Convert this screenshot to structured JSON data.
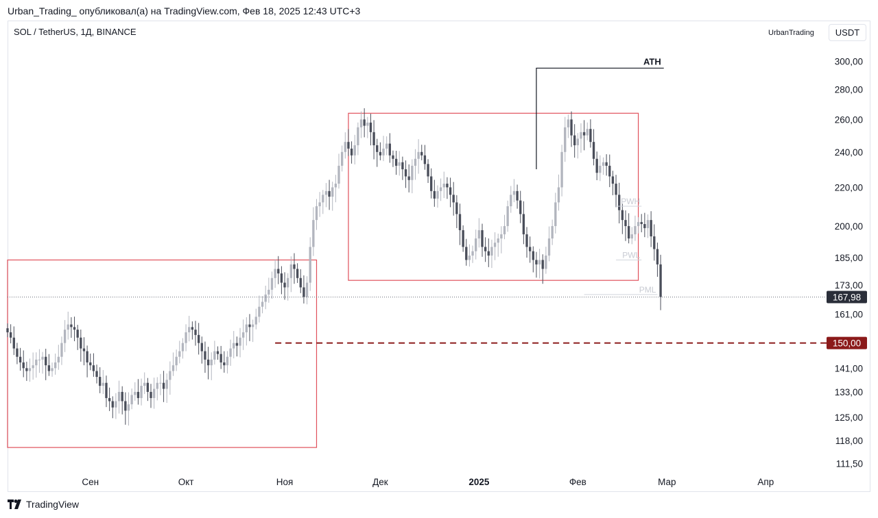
{
  "header": {
    "caption": "Urban_Trading_ опубликовал(а) на TradingView.com, Фев 18, 2025 12:43 UTC+3"
  },
  "chart_header": {
    "symbol": "SOL / TetherUS, 1Д, BINANCE",
    "author": "UrbanTrading",
    "currency": "USDT"
  },
  "footer": {
    "brand": "TradingView"
  },
  "colors": {
    "candle_up": "#b2b5be",
    "candle_down": "#4a4e5a",
    "box": "#e0505a",
    "level": "#8b1a1a",
    "last_price_bg": "#2a2e39"
  },
  "chart_data": {
    "type": "candlestick",
    "symbol": "SOL / TetherUS",
    "interval": "1Д",
    "exchange": "BINANCE",
    "y_scale": "log",
    "y_ticks": [
      "300,00",
      "280,00",
      "260,00",
      "240,00",
      "220,00",
      "200,00",
      "185,00",
      "173,00",
      "161,00",
      "141,00",
      "133,00",
      "125,00",
      "118,00",
      "111,50"
    ],
    "y_tick_values": [
      300,
      280,
      260,
      240,
      220,
      200,
      185,
      173,
      161,
      141,
      133,
      125,
      118,
      111.5
    ],
    "x_ticks": [
      {
        "label": "Сен",
        "date": "2024-09-01",
        "bold": false
      },
      {
        "label": "Окт",
        "date": "2024-10-01",
        "bold": false
      },
      {
        "label": "Ноя",
        "date": "2024-11-01",
        "bold": false
      },
      {
        "label": "Дек",
        "date": "2024-12-01",
        "bold": false
      },
      {
        "label": "2025",
        "date": "2025-01-01",
        "bold": true
      },
      {
        "label": "Фев",
        "date": "2025-02-01",
        "bold": false
      },
      {
        "label": "Мар",
        "date": "2025-03-01",
        "bold": false
      },
      {
        "label": "Апр",
        "date": "2025-04-01",
        "bold": false
      }
    ],
    "x_range": [
      "2024-08-06",
      "2025-04-16"
    ],
    "last_price": {
      "value": 167.98,
      "label": "167,98"
    },
    "key_level": {
      "value": 150.0,
      "label": "150,00",
      "from": "2024-10-29"
    },
    "ath": {
      "label": "ATH",
      "value": 295,
      "date": "2025-01-19",
      "to": "2025-02-28"
    },
    "annotations": [
      {
        "label": "PWH",
        "value": 210,
        "from": "2025-02-13",
        "to": "2025-02-21"
      },
      {
        "label": "PWL",
        "value": 184,
        "from": "2025-02-13",
        "to": "2025-02-21"
      },
      {
        "label": "PML",
        "value": 169,
        "from": "2025-02-03",
        "to": "2025-02-26"
      }
    ],
    "boxes": [
      {
        "from": "2024-08-06",
        "to": "2024-11-11",
        "high": 184,
        "low": 116
      },
      {
        "from": "2024-11-21",
        "to": "2025-02-20",
        "high": 264,
        "low": 175
      }
    ],
    "closes": {
      "start": "2024-08-06",
      "values": [
        154,
        152,
        148,
        145,
        143,
        141,
        140,
        141,
        142,
        144,
        144,
        145,
        142,
        140,
        141,
        143,
        145,
        150,
        155,
        157,
        156,
        155,
        152,
        148,
        147,
        143,
        142,
        140,
        138,
        135,
        136,
        131,
        130,
        128,
        130,
        133,
        130,
        127,
        129,
        132,
        133,
        131,
        135,
        136,
        133,
        131,
        134,
        136,
        136,
        134,
        137,
        140,
        142,
        145,
        147,
        150,
        154,
        156,
        155,
        153,
        150,
        147,
        144,
        142,
        144,
        147,
        146,
        143,
        142,
        145,
        148,
        150,
        149,
        152,
        154,
        157,
        156,
        157,
        160,
        164,
        166,
        169,
        171,
        176,
        180,
        178,
        174,
        172,
        176,
        182,
        180,
        176,
        172,
        168,
        174,
        190,
        203,
        210,
        212,
        216,
        218,
        215,
        220,
        222,
        232,
        240,
        246,
        242,
        238,
        244,
        255,
        260,
        256,
        258,
        252,
        244,
        240,
        238,
        242,
        245,
        238,
        236,
        232,
        234,
        230,
        226,
        224,
        232,
        236,
        240,
        238,
        233,
        226,
        218,
        214,
        218,
        220,
        222,
        220,
        216,
        212,
        206,
        198,
        190,
        184,
        186,
        188,
        194,
        198,
        190,
        188,
        186,
        190,
        192,
        194,
        196,
        200,
        210,
        216,
        218,
        213,
        206,
        196,
        190,
        188,
        184,
        182,
        184,
        180,
        186,
        194,
        200,
        212,
        220,
        240,
        255,
        260,
        250,
        244,
        248,
        252,
        250,
        254,
        246,
        236,
        228,
        232,
        234,
        232,
        226,
        222,
        216,
        208,
        203,
        200,
        194,
        196,
        200,
        202,
        201,
        199,
        203,
        195,
        189,
        182,
        168
      ]
    }
  }
}
